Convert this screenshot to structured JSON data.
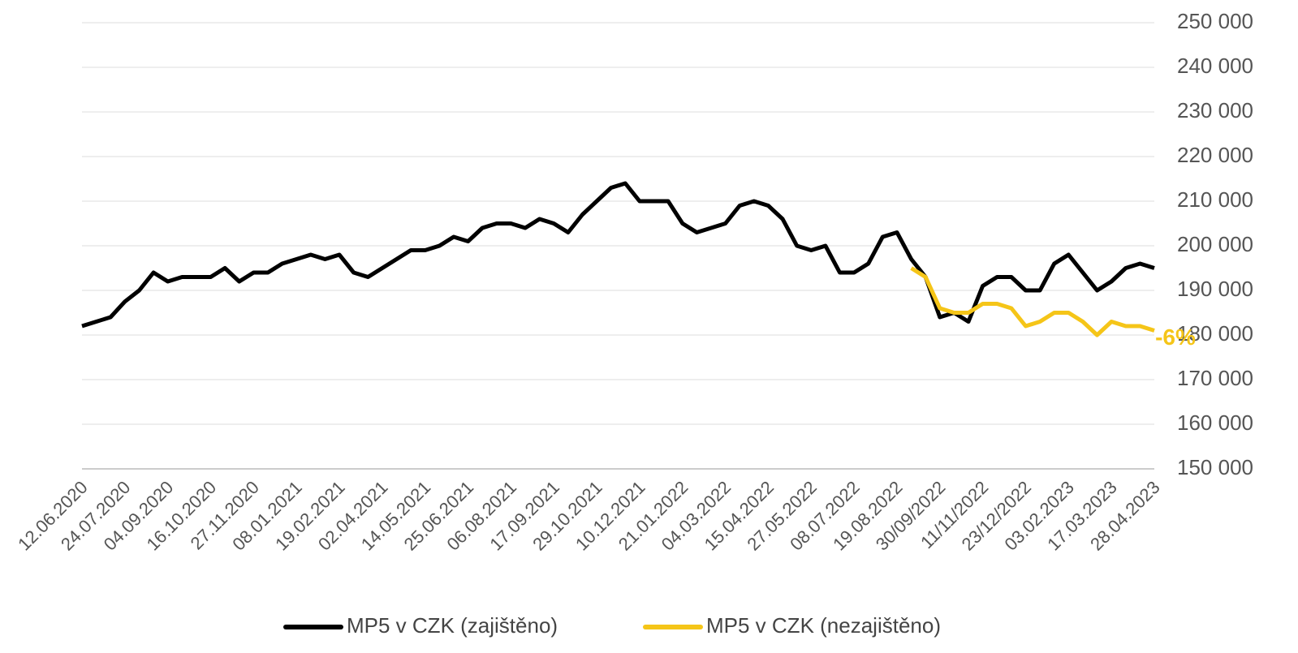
{
  "chart_data": {
    "type": "line",
    "categories": [
      "12.06.2020",
      null,
      null,
      "24.07.2020",
      null,
      null,
      "04.09.2020",
      null,
      null,
      "16.10.2020",
      null,
      null,
      "27.11.2020",
      null,
      null,
      "08.01.2021",
      null,
      null,
      "19.02.2021",
      null,
      null,
      "02.04.2021",
      null,
      null,
      "14.05.2021",
      null,
      null,
      "25.06.2021",
      null,
      null,
      "06.08.2021",
      null,
      null,
      "17.09.2021",
      null,
      null,
      "29.10.2021",
      null,
      null,
      "10.12.2021",
      null,
      null,
      "21.01.2022",
      null,
      null,
      "04.03.2022",
      null,
      null,
      "15.04.2022",
      null,
      null,
      "27.05.2022",
      null,
      null,
      "08.07.2022",
      null,
      null,
      "19.08.2022",
      null,
      null,
      "30/09/2022",
      null,
      null,
      "11/11/2022",
      null,
      null,
      "23/12/2022",
      null,
      null,
      "03.02.2023",
      null,
      null,
      "17.03.2023",
      null,
      null,
      "28.04.2023"
    ],
    "series": [
      {
        "name": "MP5 v CZK (zajištěno)",
        "color": "#000000",
        "values": [
          182000,
          183000,
          184000,
          187500,
          190000,
          194000,
          192000,
          193000,
          193000,
          193000,
          195000,
          192000,
          194000,
          194000,
          196000,
          197000,
          198000,
          197000,
          198000,
          194000,
          193000,
          195000,
          197000,
          199000,
          199000,
          200000,
          202000,
          201000,
          204000,
          205000,
          205000,
          204000,
          206000,
          205000,
          203000,
          207000,
          210000,
          213000,
          214000,
          210000,
          210000,
          210000,
          205000,
          203000,
          204000,
          205000,
          209000,
          210000,
          209000,
          206000,
          200000,
          199000,
          200000,
          194000,
          194000,
          196000,
          202000,
          203000,
          197000,
          193000,
          184000,
          185000,
          183000,
          191000,
          193000,
          193000,
          190000,
          190000,
          196000,
          198000,
          194000,
          190000,
          192000,
          195000,
          196000,
          195000
        ]
      },
      {
        "name": "MP5 v CZK (nezajištěno)",
        "color": "#f5c518",
        "values": [
          null,
          null,
          null,
          null,
          null,
          null,
          null,
          null,
          null,
          null,
          null,
          null,
          null,
          null,
          null,
          null,
          null,
          null,
          null,
          null,
          null,
          null,
          null,
          null,
          null,
          null,
          null,
          null,
          null,
          null,
          null,
          null,
          null,
          null,
          null,
          null,
          null,
          null,
          null,
          null,
          null,
          null,
          null,
          null,
          null,
          null,
          null,
          null,
          null,
          null,
          null,
          null,
          null,
          null,
          null,
          null,
          null,
          null,
          195000,
          193000,
          186000,
          185000,
          185000,
          187000,
          187000,
          186000,
          182000,
          183000,
          185000,
          185000,
          183000,
          180000,
          183000,
          182000,
          182000,
          181000
        ]
      }
    ],
    "annotations": [
      "-6%"
    ],
    "ylim": [
      150000,
      250000
    ],
    "yticks": [
      {
        "value": 150000,
        "label": "150 000"
      },
      {
        "value": 160000,
        "label": "160 000"
      },
      {
        "value": 170000,
        "label": "170 000"
      },
      {
        "value": 180000,
        "label": "180 000"
      },
      {
        "value": 190000,
        "label": "190 000"
      },
      {
        "value": 200000,
        "label": "200 000"
      },
      {
        "value": 210000,
        "label": "210 000"
      },
      {
        "value": 220000,
        "label": "220 000"
      },
      {
        "value": 230000,
        "label": "230 000"
      },
      {
        "value": 240000,
        "label": "240 000"
      },
      {
        "value": 250000,
        "label": "250 000"
      }
    ],
    "grid": true
  }
}
